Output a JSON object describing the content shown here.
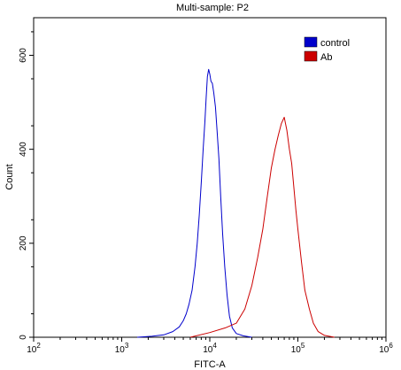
{
  "chart_data": {
    "type": "line",
    "title": "Multi-sample: P2",
    "xlabel": "FITC-A",
    "ylabel": "Count",
    "x_scale": "log",
    "xlim": [
      100,
      1000000
    ],
    "ylim": [
      0,
      680
    ],
    "x_ticks": [
      {
        "value": 100,
        "base": "10",
        "exp": "2"
      },
      {
        "value": 1000,
        "base": "10",
        "exp": "3"
      },
      {
        "value": 10000,
        "base": "10",
        "exp": "4"
      },
      {
        "value": 100000,
        "base": "10",
        "exp": "5"
      },
      {
        "value": 1000000,
        "base": "10",
        "exp": "6"
      }
    ],
    "y_ticks": [
      0,
      200,
      400,
      600
    ],
    "grid": false,
    "legend_position": "top-right",
    "series": [
      {
        "name": "control",
        "color": "#0000cc",
        "points": [
          [
            1500,
            0
          ],
          [
            2200,
            2
          ],
          [
            3000,
            5
          ],
          [
            3800,
            12
          ],
          [
            4500,
            22
          ],
          [
            5000,
            35
          ],
          [
            5400,
            50
          ],
          [
            5800,
            70
          ],
          [
            6300,
            100
          ],
          [
            6800,
            150
          ],
          [
            7200,
            200
          ],
          [
            7600,
            260
          ],
          [
            8000,
            330
          ],
          [
            8400,
            400
          ],
          [
            8800,
            460
          ],
          [
            9100,
            510
          ],
          [
            9400,
            555
          ],
          [
            9700,
            570
          ],
          [
            10000,
            560
          ],
          [
            10300,
            545
          ],
          [
            10700,
            540
          ],
          [
            11100,
            520
          ],
          [
            11600,
            490
          ],
          [
            12100,
            440
          ],
          [
            12700,
            380
          ],
          [
            13300,
            300
          ],
          [
            14000,
            220
          ],
          [
            14800,
            150
          ],
          [
            15700,
            90
          ],
          [
            16700,
            45
          ],
          [
            18000,
            20
          ],
          [
            20000,
            8
          ],
          [
            24000,
            3
          ],
          [
            30000,
            0
          ]
        ]
      },
      {
        "name": "Ab",
        "color": "#cc0000",
        "points": [
          [
            6000,
            0
          ],
          [
            10000,
            10
          ],
          [
            15000,
            20
          ],
          [
            20000,
            30
          ],
          [
            25000,
            60
          ],
          [
            30000,
            110
          ],
          [
            35000,
            170
          ],
          [
            40000,
            230
          ],
          [
            45000,
            300
          ],
          [
            50000,
            360
          ],
          [
            55000,
            400
          ],
          [
            60000,
            430
          ],
          [
            65000,
            455
          ],
          [
            70000,
            468
          ],
          [
            75000,
            440
          ],
          [
            80000,
            400
          ],
          [
            85000,
            370
          ],
          [
            90000,
            320
          ],
          [
            95000,
            270
          ],
          [
            100000,
            230
          ],
          [
            110000,
            160
          ],
          [
            120000,
            100
          ],
          [
            135000,
            60
          ],
          [
            150000,
            30
          ],
          [
            170000,
            12
          ],
          [
            200000,
            4
          ],
          [
            260000,
            0
          ]
        ]
      }
    ]
  }
}
